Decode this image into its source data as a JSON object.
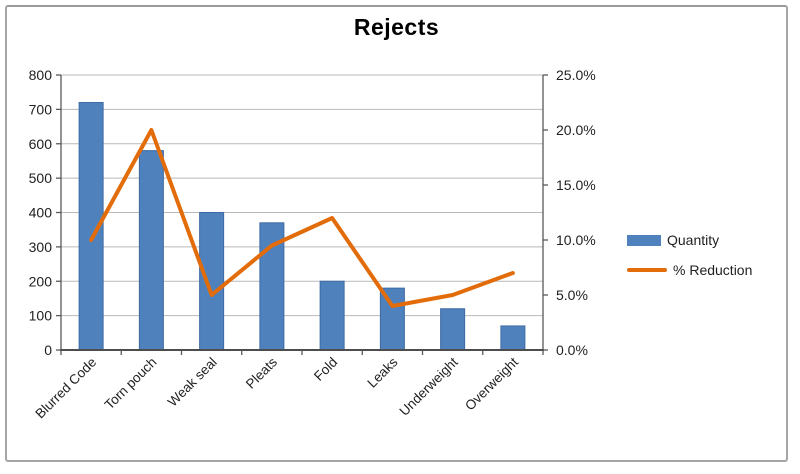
{
  "chart": {
    "colors": {
      "bar": "#4f81bd",
      "bar_edge": "#3f6aa3",
      "line": "#e36c0a",
      "grid": "#b9b9b9",
      "axis": "#595959",
      "x_axis": "#4d4d4d",
      "text": "#1f1f1f",
      "title": "#000000",
      "frame_border": "#a6a6a6"
    }
  },
  "chart_data": {
    "type": "bar",
    "subtype": "combo-bar-line",
    "title": "Rejects",
    "categories": [
      "Blurred Code",
      "Torn pouch",
      "Weak seal",
      "Pleats",
      "Fold",
      "Leaks",
      "Underweight",
      "Overweight"
    ],
    "series": [
      {
        "name": "Quantity",
        "type": "bar",
        "axis": "left",
        "color": "#4f81bd",
        "values": [
          720,
          580,
          400,
          370,
          200,
          180,
          120,
          70
        ]
      },
      {
        "name": "% Reduction",
        "type": "line",
        "axis": "right",
        "color": "#e36c0a",
        "values": [
          10.0,
          20.0,
          5.0,
          9.5,
          12.0,
          4.0,
          5.0,
          7.0
        ],
        "unit": "%"
      }
    ],
    "left_axis": {
      "min": 0,
      "max": 800,
      "step": 100,
      "tick_labels": [
        "800",
        "700",
        "600",
        "500",
        "400",
        "300",
        "200",
        "100",
        "0"
      ]
    },
    "right_axis": {
      "min": 0,
      "max": 25,
      "step": 5,
      "tick_labels": [
        "25.0%",
        "20.0%",
        "15.0%",
        "10.0%",
        "5.0%",
        "0.0%"
      ]
    },
    "grid": true,
    "legend": {
      "position": "right",
      "entries": [
        "Quantity",
        "% Reduction"
      ]
    },
    "x_label_rotation": -45
  }
}
